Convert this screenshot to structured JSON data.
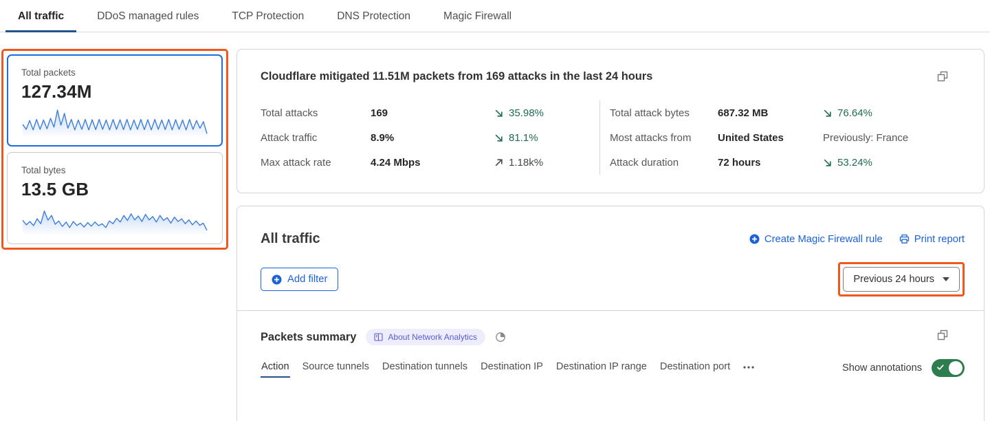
{
  "colors": {
    "link_blue": "#1a62d8",
    "selected_card_border": "#1a6ce0",
    "tab_underline": "#23538c",
    "annotation_orange": "#f0571f",
    "trend_green": "#1e6b55",
    "trend_up_dark": "#414a47",
    "toggle_green": "#2e7d4f",
    "badge_bg": "#eeedfb",
    "badge_text": "#5a5bd7",
    "sparkline_blue": "#3d7edb"
  },
  "tabs": {
    "items": [
      {
        "label": "All traffic",
        "active": true
      },
      {
        "label": "DDoS managed rules",
        "active": false
      },
      {
        "label": "TCP Protection",
        "active": false
      },
      {
        "label": "DNS Protection",
        "active": false
      },
      {
        "label": "Magic Firewall",
        "active": false
      }
    ]
  },
  "summary_cards": [
    {
      "label": "Total packets",
      "value": "127.34M",
      "selected": true,
      "spark": [
        48,
        30,
        62,
        28,
        66,
        30,
        64,
        32,
        70,
        38,
        100,
        45,
        88,
        34,
        66,
        28,
        64,
        30,
        66,
        28,
        65,
        29,
        66,
        30,
        64,
        28,
        66,
        30,
        65,
        29,
        66,
        28,
        64,
        30,
        66,
        29,
        65,
        28,
        66,
        30,
        64,
        29,
        66,
        28,
        65,
        30,
        64,
        28,
        66,
        30,
        62,
        34,
        58,
        14
      ]
    },
    {
      "label": "Total bytes",
      "value": "13.5 GB",
      "selected": false,
      "spark": [
        55,
        38,
        50,
        35,
        60,
        42,
        88,
        55,
        72,
        40,
        52,
        32,
        48,
        28,
        50,
        36,
        44,
        30,
        46,
        33,
        48,
        35,
        42,
        28,
        52,
        42,
        62,
        48,
        72,
        54,
        78,
        56,
        70,
        50,
        76,
        56,
        68,
        48,
        72,
        54,
        64,
        44,
        66,
        50,
        60,
        42,
        56,
        38,
        52,
        36,
        44,
        18
      ]
    }
  ],
  "mitigation": {
    "title": "Cloudflare mitigated 11.51M packets from 169 attacks in the last 24 hours",
    "stats_left": [
      {
        "label": "Total attacks",
        "value": "169",
        "trend": "down",
        "trend_value": "35.98%"
      },
      {
        "label": "Attack traffic",
        "value": "8.9%",
        "trend": "down",
        "trend_value": "81.1%"
      },
      {
        "label": "Max attack rate",
        "value": "4.24 Mbps",
        "trend": "up",
        "trend_value": "1.18k%"
      }
    ],
    "stats_right": [
      {
        "label": "Total attack bytes",
        "value": "687.32 MB",
        "trend": "down",
        "trend_value": "76.64%"
      },
      {
        "label": "Most attacks from",
        "value": "United States",
        "trend": "none",
        "trend_value": "Previously: France"
      },
      {
        "label": "Attack duration",
        "value": "72 hours",
        "trend": "down",
        "trend_value": "53.24%"
      }
    ]
  },
  "traffic": {
    "title": "All traffic",
    "create_rule_label": "Create Magic Firewall rule",
    "print_label": "Print report",
    "add_filter_label": "Add filter",
    "time_range_label": "Previous 24 hours"
  },
  "packets": {
    "title": "Packets summary",
    "badge_label": "About Network Analytics",
    "subtabs": [
      {
        "label": "Action",
        "active": true
      },
      {
        "label": "Source tunnels",
        "active": false
      },
      {
        "label": "Destination tunnels",
        "active": false
      },
      {
        "label": "Destination IP",
        "active": false
      },
      {
        "label": "Destination IP range",
        "active": false
      },
      {
        "label": "Destination port",
        "active": false
      }
    ],
    "show_annotations_label": "Show annotations",
    "annotations_on": true
  },
  "icons": {
    "trend_down": "diagonal-down-right-arrow",
    "trend_up": "diagonal-up-right-arrow",
    "expand": "overlapping-squares",
    "plus_circle": "filled-circle-plus",
    "printer": "printer-outline",
    "book": "book-outline",
    "freshness": "quarter-pie-clock",
    "more": "ellipsis",
    "chevron_down": "caret-down",
    "check": "checkmark"
  }
}
